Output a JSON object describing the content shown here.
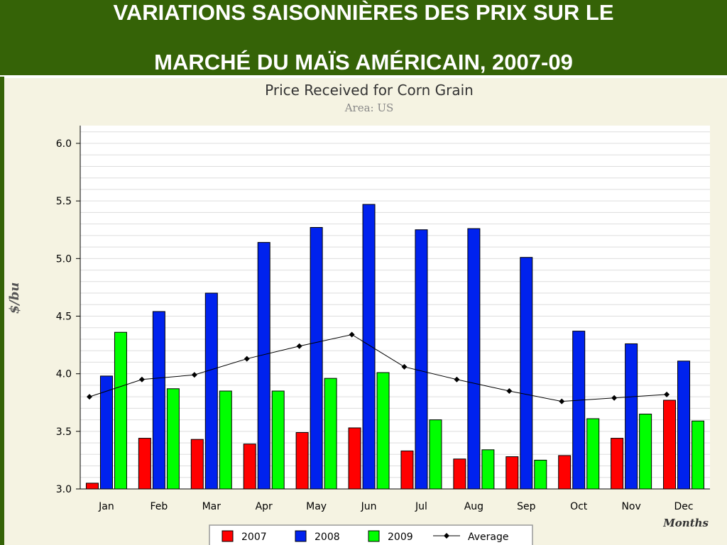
{
  "slide": {
    "title_line1": "VARIATIONS SAISONNIÈRES DES PRIX SUR LE",
    "title_line2": "MARCHÉ DU MAÏS AMÉRICAIN, 2007-09",
    "banner_color": "#356307"
  },
  "chart_data": {
    "type": "bar",
    "title": "Price Received for Corn Grain",
    "subtitle": "Area: US",
    "xlabel": "Months",
    "ylabel": "$/bu",
    "ylim": [
      3.0,
      6.0
    ],
    "yticks": [
      "3.0",
      "3.5",
      "4.0",
      "4.5",
      "5.0",
      "5.5",
      "6.0"
    ],
    "grid": true,
    "legend_position": "bottom",
    "categories": [
      "Jan",
      "Feb",
      "Mar",
      "Apr",
      "May",
      "Jun",
      "Jul",
      "Aug",
      "Sep",
      "Oct",
      "Nov",
      "Dec"
    ],
    "series": [
      {
        "name": "2007",
        "color": "#ff0000",
        "values": [
          3.05,
          3.44,
          3.43,
          3.39,
          3.49,
          3.53,
          3.33,
          3.26,
          3.28,
          3.29,
          3.44,
          3.77
        ]
      },
      {
        "name": "2008",
        "color": "#0022ee",
        "values": [
          3.98,
          4.54,
          4.7,
          5.14,
          5.27,
          5.47,
          5.25,
          5.26,
          5.01,
          4.37,
          4.26,
          4.11
        ]
      },
      {
        "name": "2009",
        "color": "#00ff00",
        "values": [
          4.36,
          3.87,
          3.85,
          3.85,
          3.96,
          4.01,
          3.6,
          3.34,
          3.25,
          3.61,
          3.65,
          3.59
        ]
      }
    ],
    "line": {
      "name": "Average",
      "color": "#000000",
      "values": [
        3.8,
        3.95,
        3.99,
        4.13,
        4.24,
        4.34,
        4.06,
        3.95,
        3.85,
        3.76,
        3.79,
        3.82
      ]
    }
  }
}
